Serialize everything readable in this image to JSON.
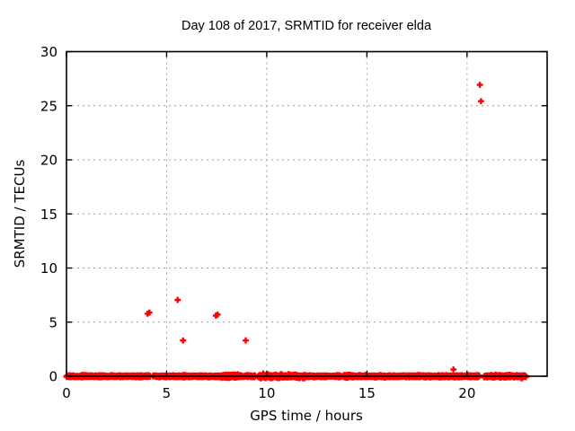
{
  "chart_data": {
    "type": "scatter",
    "title": "Day 108 of 2017, SRMTID for receiver elda",
    "xlabel": "GPS time / hours",
    "ylabel": "SRMTID / TECUs",
    "xlim": [
      0,
      24
    ],
    "ylim": [
      0,
      30
    ],
    "x_ticks": [
      0,
      5,
      10,
      15,
      20
    ],
    "y_ticks": [
      0,
      5,
      10,
      15,
      20,
      25,
      30
    ],
    "grid": true,
    "legend": "none",
    "marker": "plus",
    "series_color": "#ff0000",
    "grid_color": "#9e9e9e",
    "border_color": "#000000",
    "background_color": "#ffffff",
    "outliers": [
      {
        "x": 4.05,
        "y": 5.78
      },
      {
        "x": 4.14,
        "y": 5.88
      },
      {
        "x": 5.55,
        "y": 7.05
      },
      {
        "x": 5.82,
        "y": 3.3
      },
      {
        "x": 7.46,
        "y": 5.6
      },
      {
        "x": 7.55,
        "y": 5.7
      },
      {
        "x": 8.95,
        "y": 3.3
      },
      {
        "x": 19.32,
        "y": 0.62
      },
      {
        "x": 20.64,
        "y": 26.93
      },
      {
        "x": 20.7,
        "y": 25.42
      }
    ],
    "baseline_band": {
      "description": "dense noise band of plus markers hugging zero",
      "x_start": 0,
      "x_end": 22.95,
      "points_per_hour": 125,
      "y_mean": 0,
      "y_amplitude_default": 0.13,
      "amplitude_segments": [
        [
          7.7,
          8.6,
          0.22
        ],
        [
          9.6,
          11.9,
          0.24
        ],
        [
          13.5,
          14.4,
          0.2
        ],
        [
          20.9,
          22.95,
          0.16
        ]
      ],
      "gaps": [
        [
          4.18,
          4.32
        ],
        [
          9.42,
          9.55
        ],
        [
          13.7,
          13.8
        ],
        [
          20.62,
          20.84
        ]
      ],
      "seed": 108
    }
  }
}
